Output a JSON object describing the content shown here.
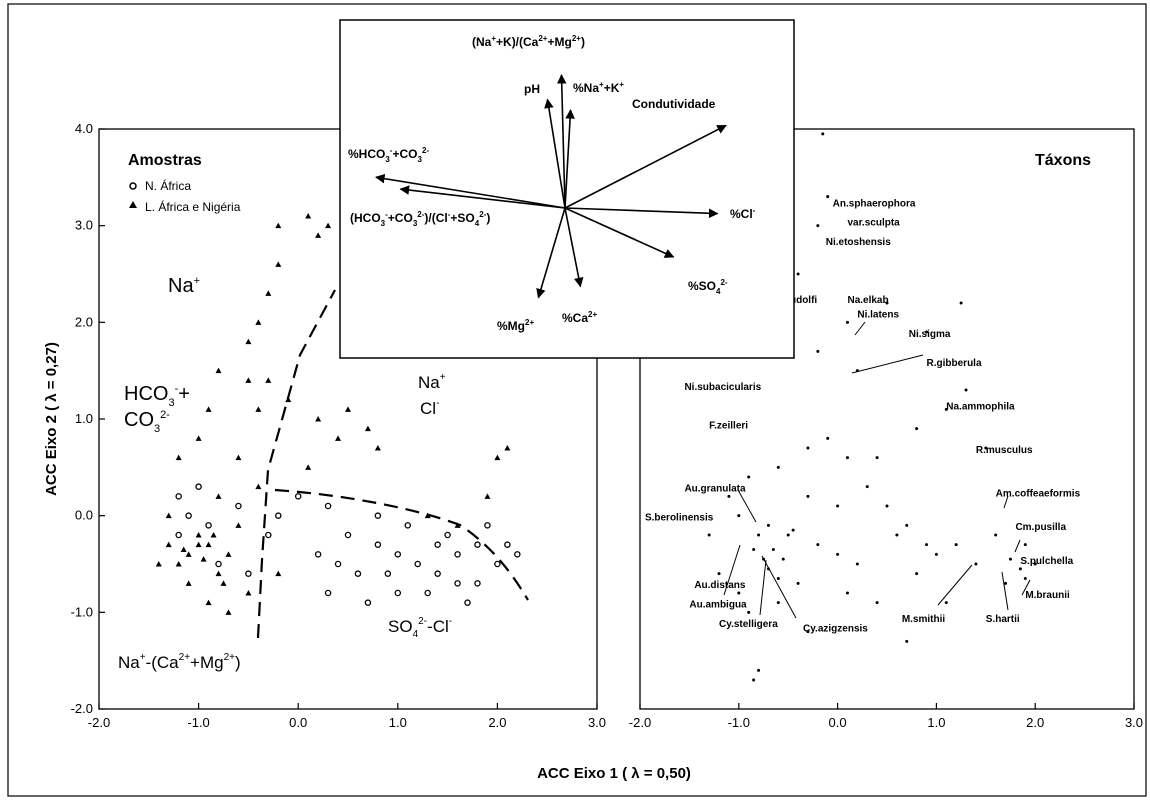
{
  "chart_data": [
    {
      "type": "scatter",
      "panel": "samples",
      "title": "Amostras",
      "xlabel": "ACC Eixo 1 ( λ = 0,50)",
      "ylabel": "ACC Eixo 2 ( λ = 0,27)",
      "xlim": [
        -2.0,
        3.0
      ],
      "ylim": [
        -2.0,
        4.0
      ],
      "xticks": [
        "-2.0",
        "-1.0",
        "0.0",
        "1.0",
        "2.0",
        "3.0"
      ],
      "yticks": [
        "4.0",
        "3.0",
        "2.0",
        "1.0",
        "0.0",
        "-1.0",
        "-2.0"
      ],
      "legend": [
        {
          "marker": "circle",
          "label": "N. África"
        },
        {
          "marker": "triangle",
          "label": "L. África e Nigéria"
        }
      ],
      "region_labels": {
        "na": "Na",
        "na_sup": "+",
        "hco3_a": "HCO",
        "hco3_sub": "3",
        "hco3_sup": "-",
        "hco3_plus": "+",
        "co3_a": "CO",
        "co3_sub": "3",
        "co3_sup": "2-",
        "nacl_na": "Na",
        "nacl_na_sup": "+",
        "nacl_cl": "Cl",
        "nacl_cl_sup": "-",
        "so4_a": "SO",
        "so4_sub": "4",
        "so4_sup": "2-",
        "so4_rest": "-Cl",
        "so4_rest_sup": "-",
        "bottom_a": "Na",
        "bottom_sup1": "+",
        "bottom_b": "-(Ca",
        "bottom_sup2": "2+",
        "bottom_c": "+Mg",
        "bottom_sup3": "2+",
        "bottom_d": ")"
      },
      "series": [
        {
          "name": "N. África",
          "marker": "circle",
          "points": [
            [
              -1.0,
              0.3
            ],
            [
              -1.2,
              0.2
            ],
            [
              -1.1,
              0.0
            ],
            [
              -0.9,
              -0.1
            ],
            [
              -0.6,
              0.1
            ],
            [
              -0.3,
              -0.2
            ],
            [
              0.0,
              0.2
            ],
            [
              0.3,
              0.1
            ],
            [
              0.5,
              -0.2
            ],
            [
              0.8,
              -0.3
            ],
            [
              1.0,
              -0.4
            ],
            [
              1.2,
              -0.5
            ],
            [
              1.4,
              -0.6
            ],
            [
              1.6,
              -0.4
            ],
            [
              1.8,
              -0.7
            ],
            [
              2.0,
              -0.5
            ],
            [
              2.1,
              -0.3
            ],
            [
              1.7,
              -0.9
            ],
            [
              1.3,
              -0.8
            ],
            [
              0.9,
              -0.6
            ],
            [
              0.7,
              -0.9
            ],
            [
              1.5,
              -0.2
            ],
            [
              1.9,
              -0.1
            ],
            [
              0.4,
              -0.5
            ],
            [
              0.2,
              -0.4
            ],
            [
              -0.5,
              -0.6
            ],
            [
              -0.8,
              -0.5
            ],
            [
              1.1,
              -0.1
            ],
            [
              1.6,
              -0.7
            ],
            [
              2.2,
              -0.4
            ],
            [
              0.6,
              -0.6
            ],
            [
              1.4,
              -0.3
            ],
            [
              0.8,
              0.0
            ],
            [
              -0.2,
              0.0
            ],
            [
              -1.2,
              -0.2
            ],
            [
              1.0,
              -0.8
            ],
            [
              1.8,
              -0.3
            ],
            [
              0.3,
              -0.8
            ]
          ]
        },
        {
          "name": "L. África e Nigéria",
          "marker": "triangle",
          "points": [
            [
              -1.3,
              -0.3
            ],
            [
              -1.2,
              -0.5
            ],
            [
              -1.1,
              -0.4
            ],
            [
              -1.0,
              -0.2
            ],
            [
              -0.9,
              -0.3
            ],
            [
              -0.8,
              -0.6
            ],
            [
              -0.7,
              -0.4
            ],
            [
              -1.2,
              0.6
            ],
            [
              -1.0,
              0.8
            ],
            [
              -0.9,
              1.1
            ],
            [
              -0.8,
              1.5
            ],
            [
              -0.4,
              2.0
            ],
            [
              -0.3,
              2.3
            ],
            [
              -0.2,
              2.6
            ],
            [
              0.2,
              2.9
            ],
            [
              0.3,
              3.0
            ],
            [
              -0.2,
              3.0
            ],
            [
              0.1,
              3.1
            ],
            [
              -0.5,
              1.8
            ],
            [
              -0.3,
              1.4
            ],
            [
              -0.1,
              1.2
            ],
            [
              0.2,
              1.0
            ],
            [
              0.5,
              1.1
            ],
            [
              0.7,
              0.9
            ],
            [
              -0.6,
              0.6
            ],
            [
              -0.4,
              0.3
            ],
            [
              -1.4,
              -0.5
            ],
            [
              -1.1,
              -0.7
            ],
            [
              -0.9,
              -0.9
            ],
            [
              -0.7,
              -1.0
            ],
            [
              -0.5,
              -0.8
            ],
            [
              -1.3,
              0.0
            ],
            [
              -0.6,
              -0.1
            ],
            [
              -0.2,
              -0.6
            ],
            [
              0.1,
              0.5
            ],
            [
              0.4,
              0.8
            ],
            [
              -0.8,
              0.2
            ],
            [
              -1.0,
              -0.3
            ],
            [
              -1.15,
              -0.35
            ],
            [
              -0.95,
              -0.45
            ],
            [
              -0.85,
              -0.2
            ],
            [
              -0.75,
              -0.7
            ],
            [
              1.3,
              0.0
            ],
            [
              1.6,
              -0.1
            ],
            [
              2.1,
              0.7
            ],
            [
              2.0,
              0.6
            ],
            [
              1.9,
              0.2
            ],
            [
              0.8,
              0.7
            ],
            [
              -0.5,
              1.4
            ],
            [
              -0.4,
              1.1
            ]
          ]
        }
      ],
      "dividers": "dashed"
    },
    {
      "type": "scatter",
      "panel": "taxa",
      "title": "Táxons",
      "xlim": [
        -2.0,
        3.0
      ],
      "xticks": [
        "-2.0",
        "-1.0",
        "0.0",
        "1.0",
        "2.0",
        "3.0"
      ],
      "points": [
        [
          -0.6,
          0.5
        ],
        [
          -0.9,
          0.4
        ],
        [
          -1.1,
          0.2
        ],
        [
          -0.3,
          0.7
        ],
        [
          -0.1,
          0.8
        ],
        [
          0.1,
          0.6
        ],
        [
          0.3,
          0.3
        ],
        [
          0.5,
          0.1
        ],
        [
          0.7,
          -0.1
        ],
        [
          -0.7,
          -0.1
        ],
        [
          -0.8,
          -0.2
        ],
        [
          -0.5,
          -0.2
        ],
        [
          -0.2,
          -0.3
        ],
        [
          0.0,
          -0.4
        ],
        [
          0.2,
          -0.5
        ],
        [
          0.6,
          -0.2
        ],
        [
          0.8,
          -0.6
        ],
        [
          1.0,
          -0.4
        ],
        [
          1.2,
          -0.3
        ],
        [
          1.4,
          -0.5
        ],
        [
          1.6,
          -0.2
        ],
        [
          1.9,
          -0.3
        ],
        [
          2.0,
          -0.5
        ],
        [
          -1.2,
          -0.6
        ],
        [
          -1.0,
          -0.8
        ],
        [
          -0.9,
          -1.0
        ],
        [
          -0.6,
          -0.9
        ],
        [
          -0.4,
          -0.7
        ],
        [
          0.1,
          -0.8
        ],
        [
          0.4,
          -0.9
        ],
        [
          -0.3,
          0.2
        ],
        [
          0.0,
          0.1
        ],
        [
          0.4,
          0.6
        ],
        [
          0.8,
          0.9
        ],
        [
          1.1,
          1.1
        ],
        [
          1.3,
          1.3
        ],
        [
          0.2,
          1.5
        ],
        [
          -0.2,
          1.7
        ],
        [
          0.1,
          2.0
        ],
        [
          0.5,
          2.2
        ],
        [
          0.9,
          1.9
        ],
        [
          -0.4,
          2.5
        ],
        [
          -0.2,
          3.0
        ],
        [
          -0.1,
          3.3
        ],
        [
          -0.8,
          -1.6
        ],
        [
          -0.85,
          -1.7
        ],
        [
          0.7,
          -1.3
        ],
        [
          -0.3,
          -1.2
        ],
        [
          -1.0,
          0.0
        ],
        [
          -0.65,
          -0.35
        ],
        [
          -0.55,
          -0.45
        ],
        [
          -0.75,
          -0.45
        ],
        [
          -0.85,
          -0.35
        ],
        [
          -0.7,
          -0.55
        ],
        [
          -0.6,
          -0.65
        ],
        [
          1.85,
          -0.55
        ],
        [
          1.75,
          -0.45
        ],
        [
          1.9,
          -0.65
        ],
        [
          1.7,
          -0.7
        ],
        [
          -0.15,
          3.95
        ],
        [
          1.25,
          2.2
        ],
        [
          1.1,
          -0.9
        ],
        [
          0.9,
          -0.3
        ],
        [
          1.5,
          0.7
        ],
        [
          -1.3,
          -0.2
        ],
        [
          -0.45,
          -0.15
        ]
      ],
      "labels": [
        {
          "text": "An.sphaerophora",
          "x": -0.05,
          "y": 3.2
        },
        {
          "text": "var.sculpta",
          "x": 0.1,
          "y": 3.0
        },
        {
          "text": "Ni.etoshensis",
          "x": -0.12,
          "y": 2.8
        },
        {
          "text": "T.rudolfi",
          "x": -0.6,
          "y": 2.2
        },
        {
          "text": "Na.elkab",
          "x": 0.1,
          "y": 2.2
        },
        {
          "text": "Ni.latens",
          "x": 0.2,
          "y": 2.05
        },
        {
          "text": "Ni.sigma",
          "x": 0.72,
          "y": 1.85
        },
        {
          "text": "R.gibberula",
          "x": 0.9,
          "y": 1.55
        },
        {
          "text": "Ni.subacicularis",
          "x": -1.55,
          "y": 1.3
        },
        {
          "text": "Na.ammophila",
          "x": 1.1,
          "y": 1.1
        },
        {
          "text": "F.zeilleri",
          "x": -1.3,
          "y": 0.9
        },
        {
          "text": "R.musculus",
          "x": 1.4,
          "y": 0.65
        },
        {
          "text": "Au.granulata",
          "x": -1.55,
          "y": 0.25
        },
        {
          "text": "Am.coffeaeformis",
          "x": 1.6,
          "y": 0.2
        },
        {
          "text": "S.berolinensis",
          "x": -1.95,
          "y": -0.05
        },
        {
          "text": "Cm.pusilla",
          "x": 1.8,
          "y": -0.15
        },
        {
          "text": "S.pulchella",
          "x": 1.85,
          "y": -0.5
        },
        {
          "text": "Au.distans",
          "x": -1.45,
          "y": -0.75
        },
        {
          "text": "M.braunii",
          "x": 1.9,
          "y": -0.85
        },
        {
          "text": "Au.ambigua",
          "x": -1.5,
          "y": -0.95
        },
        {
          "text": "Cy.stelligera",
          "x": -1.2,
          "y": -1.15
        },
        {
          "text": "Cy.azigzensis",
          "x": -0.35,
          "y": -1.2
        },
        {
          "text": "M.smithii",
          "x": 0.65,
          "y": -1.1
        },
        {
          "text": "S.hartii",
          "x": 1.5,
          "y": -1.1
        }
      ]
    },
    {
      "type": "biplot-vectors",
      "panel": "inset",
      "vectors": [
        {
          "name": "(Na+K)/(Ca+Mg)",
          "dx": -0.05,
          "dy": 1.9
        },
        {
          "name": "pH",
          "dx": -0.25,
          "dy": 1.55
        },
        {
          "name": "%Na+K",
          "dx": 0.08,
          "dy": 1.4
        },
        {
          "name": "Condutividade",
          "dx": 2.3,
          "dy": 1.18
        },
        {
          "name": "%HCO3+CO3",
          "dx": -2.7,
          "dy": 0.44
        },
        {
          "name": "(HCO3+CO3)/(Cl+SO4)",
          "dx": -2.35,
          "dy": 0.27
        },
        {
          "name": "%Cl",
          "dx": 2.18,
          "dy": -0.08
        },
        {
          "name": "%SO4",
          "dx": 1.55,
          "dy": -0.7
        },
        {
          "name": "%Mg",
          "dx": -0.38,
          "dy": -1.28
        },
        {
          "name": "%Ca",
          "dx": 0.22,
          "dy": -1.12
        }
      ],
      "labels": {
        "top_a": "(Na",
        "top_s1": "+",
        "top_b": "+K)/(Ca",
        "top_s2": "2+",
        "top_c": "+Mg",
        "top_s3": "2+",
        "top_d": ")",
        "ph": "pH",
        "nak_a": "%Na",
        "nak_s1": "+",
        "nak_b": "+K",
        "nak_s2": "+",
        "cond": "Condutividade",
        "hco_a": "%HCO",
        "hco_b1": "3",
        "hco_s1": "-",
        "hco_c": "+CO",
        "hco_b2": "3",
        "hco_s2": "2-",
        "ratio_a": "(HCO",
        "ratio_b1": "3",
        "ratio_s1": "-",
        "ratio_c": "+CO",
        "ratio_b2": "3",
        "ratio_s2": "2-",
        "ratio_d": ")/(Cl",
        "ratio_s3": "-",
        "ratio_e": "+SO",
        "ratio_b3": "4",
        "ratio_s4": "2-",
        "ratio_f": ")",
        "cl_a": "%Cl",
        "cl_s": "-",
        "so4_a": "%SO",
        "so4_b": "4",
        "so4_s": "2-",
        "mg_a": "%Mg",
        "mg_s": "2+",
        "ca_a": "%Ca",
        "ca_s": "2+"
      }
    }
  ]
}
